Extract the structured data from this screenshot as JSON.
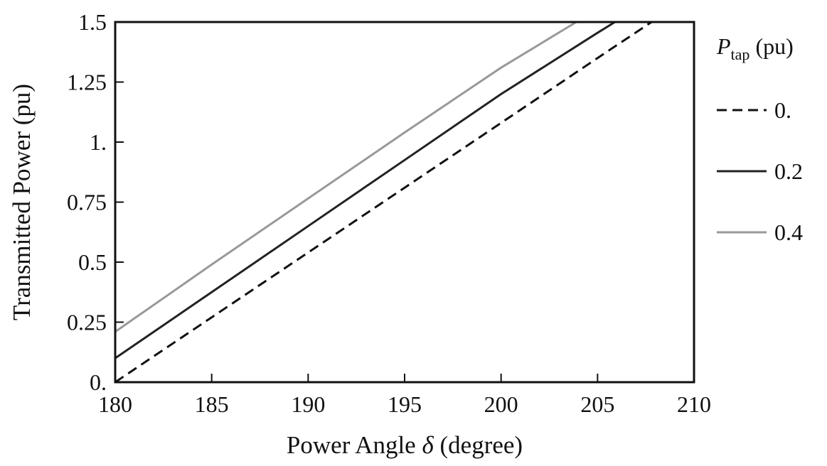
{
  "chart_data": {
    "type": "line",
    "xlabel_text": "Power Angle ",
    "xlabel_symbol": "δ",
    "xlabel_unit": " (degree)",
    "ylabel": "Transmitted Power (pu)",
    "xlim": [
      180,
      210
    ],
    "ylim": [
      0,
      1.5
    ],
    "x_ticks": [
      180,
      185,
      190,
      195,
      200,
      205,
      210
    ],
    "x_tick_labels": [
      "180",
      "185",
      "190",
      "195",
      "200",
      "205",
      "210"
    ],
    "y_ticks": [
      0,
      0.25,
      0.5,
      0.75,
      1,
      1.25,
      1.5
    ],
    "y_tick_labels": [
      "0.",
      "0.25",
      "0.5",
      "0.75",
      "1.",
      "1.25",
      "1.5"
    ],
    "grid": false,
    "legend_title_symbol": "P",
    "legend_title_subscript": "tap",
    "legend_title_unit": " (pu)",
    "legend_position": "right",
    "series": [
      {
        "name": "0.",
        "style": "dashed",
        "color": "#111111",
        "x": [
          180,
          185,
          190,
          195,
          200,
          205,
          207.8
        ],
        "y": [
          0,
          0.27,
          0.54,
          0.81,
          1.08,
          1.35,
          1.5
        ]
      },
      {
        "name": "0.2",
        "style": "solid",
        "color": "#222222",
        "x": [
          180,
          185,
          190,
          195,
          200,
          205,
          205.9
        ],
        "y": [
          0.1,
          0.375,
          0.65,
          0.925,
          1.2,
          1.455,
          1.5
        ]
      },
      {
        "name": "0.4",
        "style": "solid",
        "color": "#999999",
        "x": [
          180,
          185,
          190,
          195,
          200,
          203.9
        ],
        "y": [
          0.21,
          0.49,
          0.765,
          1.04,
          1.31,
          1.5
        ]
      }
    ]
  }
}
